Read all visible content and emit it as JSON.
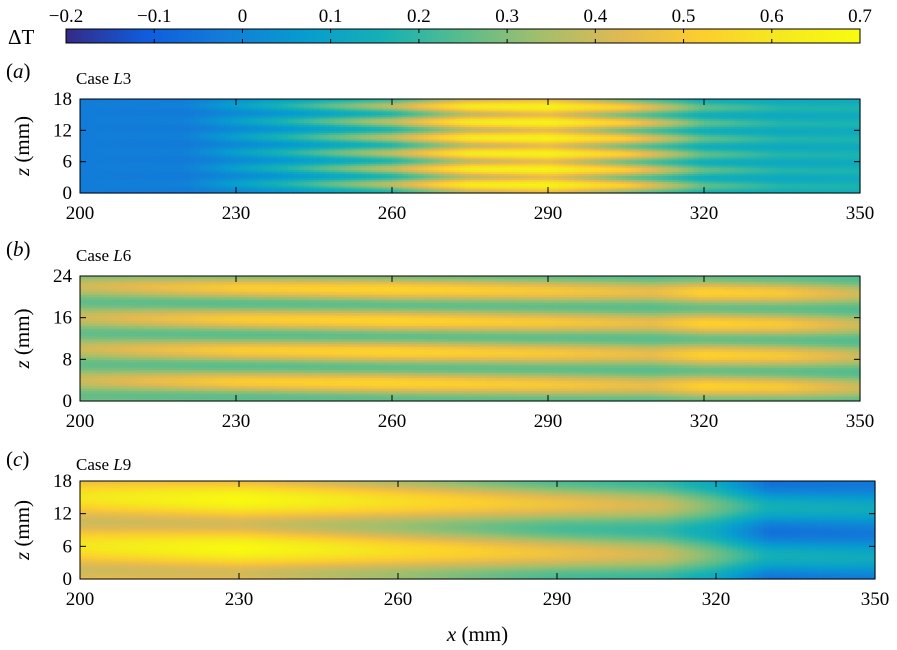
{
  "colorbar": {
    "label": "ΔT",
    "ticks": [
      "−0.2",
      "−0.1",
      "0",
      "0.1",
      "0.2",
      "0.3",
      "0.4",
      "0.5",
      "0.6",
      "0.7"
    ],
    "range": [
      -0.2,
      0.7
    ],
    "colormap": "parula"
  },
  "chart_data": [
    {
      "type": "heatmap",
      "panel": "(a)",
      "title_prefix": "Case",
      "title_case": "L3",
      "xlabel": "",
      "ylabel": "z (mm)",
      "xlim": [
        200,
        350
      ],
      "ylim": [
        0,
        18
      ],
      "xticks": [
        "200",
        "230",
        "260",
        "290",
        "320",
        "350"
      ],
      "yticks": [
        "0",
        "6",
        "12",
        "18"
      ],
      "streaks_count": 6,
      "profile": {
        "x": [
          200,
          220,
          240,
          260,
          275,
          290,
          305,
          320,
          335,
          350
        ],
        "mean": [
          -0.02,
          -0.02,
          0.12,
          0.28,
          0.5,
          0.55,
          0.4,
          0.2,
          0.15,
          0.15
        ],
        "amp": [
          0,
          0.01,
          0.06,
          0.1,
          0.12,
          0.1,
          0.12,
          0.06,
          0.03,
          0.02
        ]
      }
    },
    {
      "type": "heatmap",
      "panel": "(b)",
      "title_prefix": "Case",
      "title_case": "L6",
      "xlabel": "",
      "ylabel": "z (mm)",
      "xlim": [
        200,
        350
      ],
      "ylim": [
        0,
        24
      ],
      "xticks": [
        "200",
        "230",
        "260",
        "290",
        "320",
        "350"
      ],
      "yticks": [
        "0",
        "8",
        "16",
        "24"
      ],
      "streaks_count": 4,
      "profile": {
        "x": [
          200,
          230,
          260,
          290,
          310,
          320,
          335,
          350
        ],
        "mean": [
          0.33,
          0.38,
          0.4,
          0.38,
          0.35,
          0.4,
          0.38,
          0.32
        ],
        "amp": [
          0.07,
          0.13,
          0.14,
          0.12,
          0.1,
          0.13,
          0.12,
          0.08
        ]
      }
    },
    {
      "type": "heatmap",
      "panel": "(c)",
      "title_prefix": "Case",
      "title_case": "L9",
      "xlabel": "x (mm)",
      "ylabel": "z (mm)",
      "xlim": [
        200,
        350
      ],
      "ylim": [
        0,
        18
      ],
      "xticks": [
        "200",
        "230",
        "260",
        "290",
        "320",
        "350"
      ],
      "yticks": [
        "0",
        "6",
        "12",
        "18"
      ],
      "streaks_count": 2,
      "profile": {
        "x": [
          200,
          230,
          260,
          290,
          310,
          320,
          330,
          350
        ],
        "mean": [
          0.5,
          0.55,
          0.45,
          0.35,
          0.3,
          0.2,
          0.05,
          0.05
        ],
        "amp": [
          0.1,
          0.14,
          0.12,
          0.12,
          0.1,
          0.08,
          0.1,
          0.08
        ]
      }
    }
  ]
}
